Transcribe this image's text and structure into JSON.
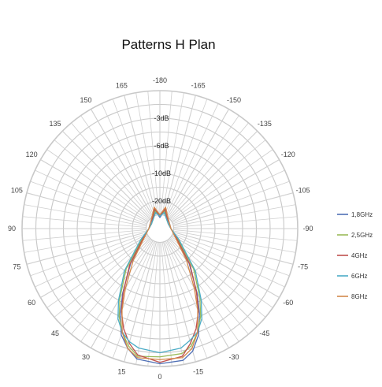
{
  "chart_data": {
    "type": "polar-line",
    "title": "Patterns H Plan",
    "angle_ticks": [
      "-180",
      "-165",
      "-150",
      "-135",
      "-120",
      "-105",
      "-90",
      "-75",
      "-60",
      "-45",
      "-30",
      "-15",
      "0",
      "15",
      "30",
      "45",
      "60",
      "75",
      "90",
      "105",
      "120",
      "135",
      "150",
      "165"
    ],
    "radial_ticks": [
      "-3dB",
      "-6dB",
      "-10dB",
      "-20dB"
    ],
    "radial_tick_levels": [
      0.8,
      0.6,
      0.4,
      0.2
    ],
    "legend_position": "right",
    "series": [
      {
        "name": "1,8GHz",
        "color": "#4f6fb5",
        "theta": [
          0,
          10,
          15,
          20,
          25,
          30,
          40,
          60,
          90,
          120,
          150,
          165,
          180,
          195,
          210,
          240,
          270,
          300,
          320,
          330,
          335,
          340,
          345,
          350
        ],
        "r": [
          0.98,
          0.96,
          0.9,
          0.82,
          0.68,
          0.54,
          0.33,
          0.14,
          0.08,
          0.08,
          0.1,
          0.14,
          0.08,
          0.14,
          0.1,
          0.08,
          0.08,
          0.14,
          0.33,
          0.54,
          0.68,
          0.82,
          0.92,
          0.97
        ]
      },
      {
        "name": "2,5GHz",
        "color": "#9bbb59",
        "theta": [
          0,
          10,
          15,
          20,
          25,
          30,
          40,
          60,
          90,
          120,
          150,
          165,
          180,
          195,
          210,
          240,
          270,
          300,
          320,
          330,
          335,
          340,
          345,
          350
        ],
        "r": [
          0.93,
          0.94,
          0.88,
          0.8,
          0.7,
          0.58,
          0.38,
          0.15,
          0.08,
          0.07,
          0.09,
          0.13,
          0.1,
          0.13,
          0.09,
          0.07,
          0.08,
          0.15,
          0.38,
          0.58,
          0.7,
          0.8,
          0.88,
          0.92
        ]
      },
      {
        "name": "4GHz",
        "color": "#c0504d",
        "theta": [
          0,
          10,
          15,
          20,
          25,
          30,
          40,
          60,
          90,
          120,
          150,
          165,
          180,
          195,
          210,
          240,
          270,
          300,
          320,
          330,
          335,
          340,
          345,
          350
        ],
        "r": [
          0.97,
          0.93,
          0.86,
          0.77,
          0.66,
          0.53,
          0.34,
          0.14,
          0.08,
          0.07,
          0.1,
          0.15,
          0.09,
          0.15,
          0.1,
          0.07,
          0.08,
          0.14,
          0.34,
          0.53,
          0.66,
          0.77,
          0.86,
          0.94
        ]
      },
      {
        "name": "6GHz",
        "color": "#4bacc6",
        "theta": [
          0,
          10,
          15,
          20,
          25,
          30,
          40,
          60,
          90,
          120,
          150,
          165,
          180,
          195,
          210,
          240,
          270,
          300,
          320,
          330,
          335,
          340,
          345,
          350
        ],
        "r": [
          0.9,
          0.88,
          0.85,
          0.8,
          0.72,
          0.6,
          0.4,
          0.16,
          0.08,
          0.07,
          0.09,
          0.12,
          0.09,
          0.12,
          0.09,
          0.07,
          0.08,
          0.16,
          0.4,
          0.6,
          0.72,
          0.8,
          0.84,
          0.88
        ]
      },
      {
        "name": "8GHz",
        "color": "#d2884b",
        "theta": [
          0,
          10,
          15,
          20,
          25,
          30,
          40,
          60,
          90,
          120,
          150,
          165,
          180,
          195,
          210,
          240,
          270,
          300,
          320,
          330,
          335,
          340,
          345,
          350
        ],
        "r": [
          0.95,
          0.95,
          0.9,
          0.8,
          0.65,
          0.5,
          0.3,
          0.13,
          0.08,
          0.08,
          0.11,
          0.16,
          0.1,
          0.16,
          0.11,
          0.08,
          0.08,
          0.13,
          0.3,
          0.5,
          0.65,
          0.8,
          0.9,
          0.95
        ]
      }
    ]
  }
}
